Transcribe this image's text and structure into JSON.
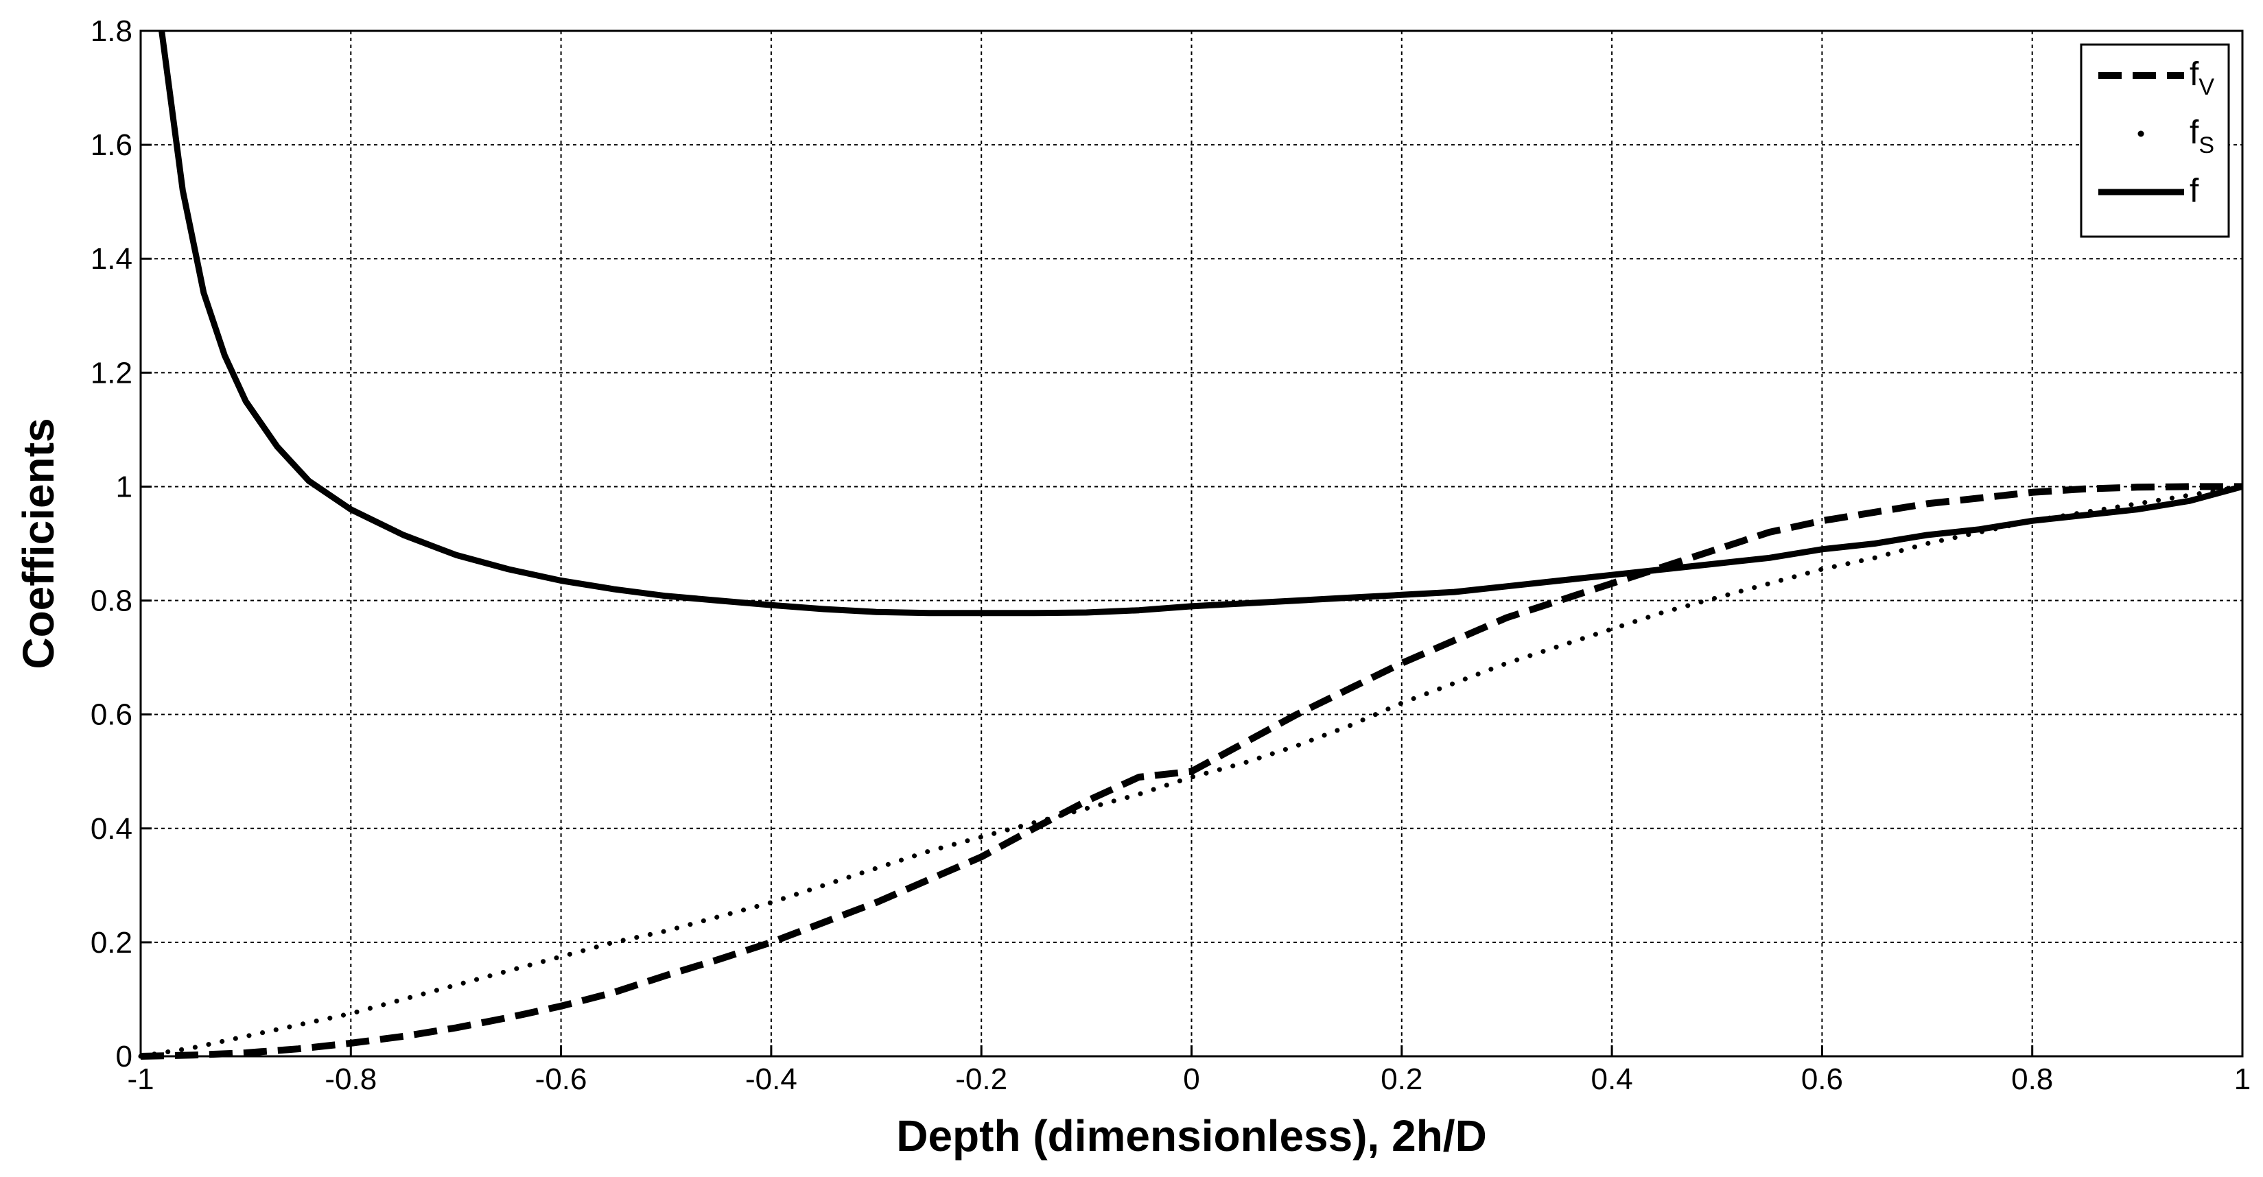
{
  "chart_data": {
    "type": "line",
    "title": "",
    "xlabel": "Depth (dimensionless), 2h/D",
    "ylabel": "Coefficients",
    "xlim": [
      -1,
      1
    ],
    "ylim": [
      0,
      1.8
    ],
    "x_ticks": [
      -1,
      -0.8,
      -0.6,
      -0.4,
      -0.2,
      0,
      0.2,
      0.4,
      0.6,
      0.8,
      1
    ],
    "x_tick_labels": [
      "-1",
      "-0.8",
      "-0.6",
      "-0.4",
      "-0.2",
      "0",
      "0.2",
      "0.4",
      "0.6",
      "0.8",
      "1"
    ],
    "y_ticks": [
      0,
      0.2,
      0.4,
      0.6,
      0.8,
      1,
      1.2,
      1.4,
      1.6,
      1.8
    ],
    "y_tick_labels": [
      "0",
      "0.2",
      "0.4",
      "0.6",
      "0.8",
      "1",
      "1.2",
      "1.4",
      "1.6",
      "1.8"
    ],
    "grid": true,
    "legend_position": "top-right",
    "series": [
      {
        "name": "f",
        "subscript": "V",
        "style": "dashed",
        "color": "#000000",
        "x": [
          -1,
          -0.95,
          -0.9,
          -0.85,
          -0.8,
          -0.75,
          -0.7,
          -0.65,
          -0.6,
          -0.55,
          -0.5,
          -0.45,
          -0.4,
          -0.35,
          -0.3,
          -0.25,
          -0.2,
          -0.15,
          -0.1,
          -0.05,
          0,
          0.05,
          0.1,
          0.15,
          0.2,
          0.25,
          0.3,
          0.35,
          0.4,
          0.45,
          0.5,
          0.55,
          0.6,
          0.65,
          0.7,
          0.75,
          0.8,
          0.85,
          0.9,
          0.95,
          1
        ],
        "y": [
          0,
          0.002,
          0.006,
          0.013,
          0.023,
          0.035,
          0.05,
          0.068,
          0.088,
          0.112,
          0.142,
          0.17,
          0.2,
          0.235,
          0.27,
          0.31,
          0.35,
          0.4,
          0.448,
          0.49,
          0.5,
          0.55,
          0.6,
          0.645,
          0.69,
          0.73,
          0.77,
          0.8,
          0.83,
          0.86,
          0.89,
          0.92,
          0.94,
          0.955,
          0.97,
          0.98,
          0.99,
          0.996,
          0.999,
          1.0,
          1.0
        ]
      },
      {
        "name": "f",
        "subscript": "S",
        "style": "dotted",
        "color": "#000000",
        "x": [
          -1,
          -0.95,
          -0.9,
          -0.85,
          -0.8,
          -0.75,
          -0.7,
          -0.65,
          -0.6,
          -0.55,
          -0.5,
          -0.45,
          -0.4,
          -0.35,
          -0.3,
          -0.25,
          -0.2,
          -0.15,
          -0.1,
          -0.05,
          0,
          0.05,
          0.1,
          0.15,
          0.2,
          0.25,
          0.3,
          0.35,
          0.4,
          0.45,
          0.5,
          0.55,
          0.6,
          0.65,
          0.7,
          0.75,
          0.8,
          0.85,
          0.9,
          0.95,
          1
        ],
        "y": [
          0,
          0.015,
          0.035,
          0.055,
          0.075,
          0.1,
          0.125,
          0.15,
          0.175,
          0.2,
          0.22,
          0.245,
          0.27,
          0.3,
          0.33,
          0.36,
          0.385,
          0.41,
          0.435,
          0.46,
          0.49,
          0.515,
          0.545,
          0.58,
          0.62,
          0.655,
          0.69,
          0.72,
          0.75,
          0.78,
          0.805,
          0.83,
          0.855,
          0.875,
          0.9,
          0.92,
          0.94,
          0.955,
          0.97,
          0.985,
          1.0
        ]
      },
      {
        "name": "f",
        "subscript": "",
        "style": "solid",
        "color": "#000000",
        "x": [
          -0.98,
          -0.96,
          -0.94,
          -0.92,
          -0.9,
          -0.87,
          -0.84,
          -0.8,
          -0.75,
          -0.7,
          -0.65,
          -0.6,
          -0.55,
          -0.5,
          -0.45,
          -0.4,
          -0.35,
          -0.3,
          -0.25,
          -0.2,
          -0.15,
          -0.1,
          -0.05,
          0,
          0.05,
          0.1,
          0.15,
          0.2,
          0.25,
          0.3,
          0.35,
          0.4,
          0.45,
          0.5,
          0.55,
          0.6,
          0.65,
          0.7,
          0.75,
          0.8,
          0.85,
          0.9,
          0.95,
          1
        ],
        "y": [
          1.8,
          1.52,
          1.34,
          1.23,
          1.15,
          1.07,
          1.01,
          0.96,
          0.915,
          0.88,
          0.855,
          0.835,
          0.82,
          0.808,
          0.8,
          0.792,
          0.785,
          0.78,
          0.778,
          0.778,
          0.778,
          0.779,
          0.783,
          0.79,
          0.795,
          0.8,
          0.805,
          0.81,
          0.815,
          0.825,
          0.835,
          0.845,
          0.855,
          0.865,
          0.875,
          0.89,
          0.9,
          0.915,
          0.925,
          0.94,
          0.95,
          0.96,
          0.975,
          1.0
        ]
      }
    ]
  }
}
